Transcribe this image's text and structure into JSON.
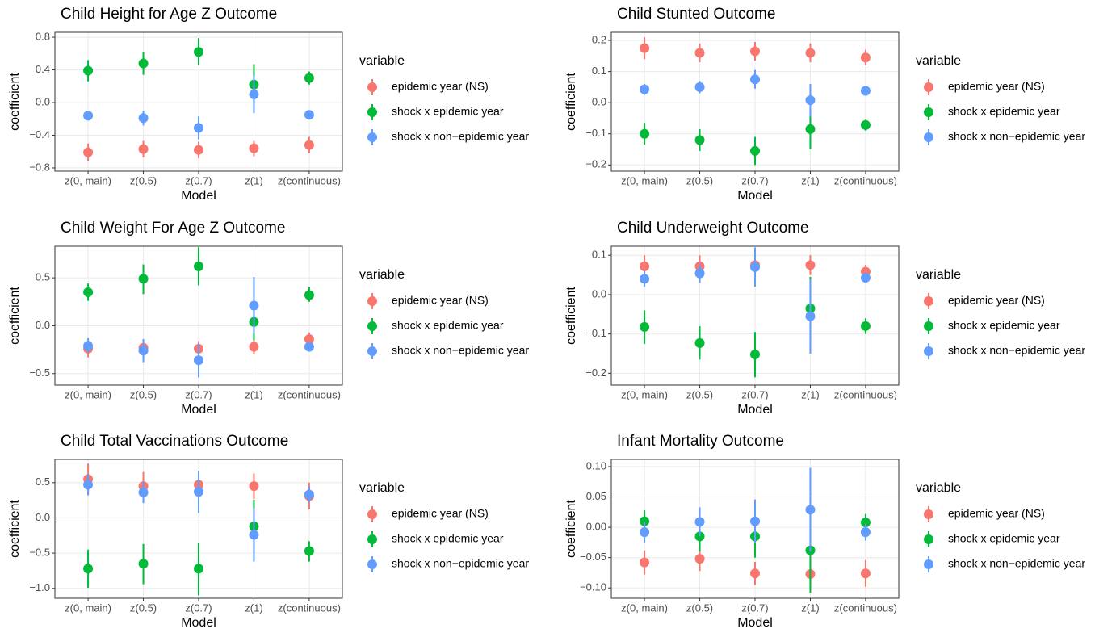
{
  "chart_data": [
    {
      "type": "pointrange",
      "title": "Child Height for Age Z Outcome",
      "xlabel": "Model",
      "ylabel": "coefficient",
      "legend_title": "variable",
      "categories": [
        "z(0, main)",
        "z(0.5)",
        "z(0.7)",
        "z(1)",
        "z(continuous)"
      ],
      "ylim": [
        -0.84,
        0.86
      ],
      "yticks": [
        {
          "value": -0.8,
          "label": "−0.8"
        },
        {
          "value": -0.4,
          "label": "−0.4"
        },
        {
          "value": 0,
          "label": "0.0"
        },
        0.4,
        0.8
      ],
      "grid": true,
      "series": [
        {
          "name": "epidemic year (NS)",
          "color": "#F8766D",
          "values": [
            -0.61,
            -0.57,
            -0.58,
            -0.56,
            -0.52
          ],
          "lower": [
            -0.72,
            -0.67,
            -0.68,
            -0.66,
            -0.62
          ],
          "upper": [
            -0.5,
            -0.47,
            -0.48,
            -0.47,
            -0.42
          ]
        },
        {
          "name": "shock x epidemic year",
          "color": "#00BA38",
          "values": [
            0.39,
            0.48,
            0.62,
            0.22,
            0.3
          ],
          "lower": [
            0.26,
            0.34,
            0.46,
            -0.02,
            0.22
          ],
          "upper": [
            0.52,
            0.62,
            0.79,
            0.47,
            0.38
          ]
        },
        {
          "name": "shock x non−epidemic year",
          "color": "#619CFF",
          "values": [
            -0.16,
            -0.19,
            -0.31,
            0.1,
            -0.15
          ],
          "lower": [
            -0.22,
            -0.28,
            -0.45,
            -0.13,
            -0.18
          ],
          "upper": [
            -0.1,
            -0.1,
            -0.17,
            0.33,
            -0.11
          ]
        }
      ]
    },
    {
      "type": "pointrange",
      "title": "Child Stunted Outcome",
      "xlabel": "Model",
      "ylabel": "coefficient",
      "legend_title": "variable",
      "categories": [
        "z(0, main)",
        "z(0.5)",
        "z(0.7)",
        "z(1)",
        "z(continuous)"
      ],
      "ylim": [
        -0.22,
        0.226
      ],
      "yticks": [
        {
          "value": -0.2,
          "label": "−0.2"
        },
        {
          "value": -0.1,
          "label": "−0.1"
        },
        {
          "value": 0,
          "label": "0.0"
        },
        0.1,
        0.2
      ],
      "grid": true,
      "series": [
        {
          "name": "epidemic year (NS)",
          "color": "#F8766D",
          "values": [
            0.175,
            0.16,
            0.165,
            0.16,
            0.145
          ],
          "lower": [
            0.14,
            0.13,
            0.135,
            0.13,
            0.12
          ],
          "upper": [
            0.21,
            0.19,
            0.195,
            0.19,
            0.17
          ]
        },
        {
          "name": "shock x epidemic year",
          "color": "#00BA38",
          "values": [
            -0.1,
            -0.12,
            -0.155,
            -0.085,
            -0.072
          ],
          "lower": [
            -0.135,
            -0.155,
            -0.2,
            -0.15,
            -0.09
          ],
          "upper": [
            -0.065,
            -0.085,
            -0.11,
            -0.02,
            -0.055
          ]
        },
        {
          "name": "shock x non−epidemic year",
          "color": "#619CFF",
          "values": [
            0.043,
            0.05,
            0.075,
            0.008,
            0.038
          ],
          "lower": [
            0.025,
            0.03,
            0.045,
            -0.045,
            0.028
          ],
          "upper": [
            0.06,
            0.07,
            0.105,
            0.06,
            0.048
          ]
        }
      ]
    },
    {
      "type": "pointrange",
      "title": "Child Weight For Age Z Outcome",
      "xlabel": "Model",
      "ylabel": "coefficient",
      "legend_title": "variable",
      "categories": [
        "z(0, main)",
        "z(0.5)",
        "z(0.7)",
        "z(1)",
        "z(continuous)"
      ],
      "ylim": [
        -0.62,
        0.83
      ],
      "yticks": [
        {
          "value": -0.5,
          "label": "−0.5"
        },
        {
          "value": 0,
          "label": "0.0"
        },
        0.5
      ],
      "grid": true,
      "series": [
        {
          "name": "epidemic year (NS)",
          "color": "#F8766D",
          "values": [
            -0.24,
            -0.23,
            -0.24,
            -0.22,
            -0.14
          ],
          "lower": [
            -0.33,
            -0.32,
            -0.32,
            -0.3,
            -0.21
          ],
          "upper": [
            -0.15,
            -0.14,
            -0.16,
            -0.14,
            -0.07
          ]
        },
        {
          "name": "shock x epidemic year",
          "color": "#00BA38",
          "values": [
            0.35,
            0.49,
            0.62,
            0.04,
            0.32
          ],
          "lower": [
            0.26,
            0.33,
            0.42,
            -0.15,
            0.25
          ],
          "upper": [
            0.44,
            0.64,
            0.82,
            0.23,
            0.4
          ]
        },
        {
          "name": "shock x non−epidemic year",
          "color": "#619CFF",
          "values": [
            -0.21,
            -0.26,
            -0.36,
            0.21,
            -0.22
          ],
          "lower": [
            -0.28,
            -0.38,
            -0.54,
            -0.08,
            -0.27
          ],
          "upper": [
            -0.13,
            -0.14,
            -0.18,
            0.51,
            -0.17
          ]
        }
      ]
    },
    {
      "type": "pointrange",
      "title": "Child Underweight Outcome",
      "xlabel": "Model",
      "ylabel": "coefficient",
      "legend_title": "variable",
      "categories": [
        "z(0, main)",
        "z(0.5)",
        "z(0.7)",
        "z(1)",
        "z(continuous)"
      ],
      "ylim": [
        -0.23,
        0.123
      ],
      "yticks": [
        {
          "value": -0.2,
          "label": "−0.2"
        },
        {
          "value": -0.1,
          "label": "−0.1"
        },
        {
          "value": 0,
          "label": "0.0"
        },
        0.1
      ],
      "grid": true,
      "series": [
        {
          "name": "epidemic year (NS)",
          "color": "#F8766D",
          "values": [
            0.072,
            0.072,
            0.075,
            0.075,
            0.058
          ],
          "lower": [
            0.045,
            0.045,
            0.05,
            0.05,
            0.04
          ],
          "upper": [
            0.1,
            0.1,
            0.1,
            0.1,
            0.076
          ]
        },
        {
          "name": "shock x epidemic year",
          "color": "#00BA38",
          "values": [
            -0.082,
            -0.123,
            -0.152,
            -0.035,
            -0.08
          ],
          "lower": [
            -0.125,
            -0.165,
            -0.21,
            -0.115,
            -0.1
          ],
          "upper": [
            -0.04,
            -0.08,
            -0.095,
            0.045,
            -0.06
          ]
        },
        {
          "name": "shock x non−epidemic year",
          "color": "#619CFF",
          "values": [
            0.04,
            0.054,
            0.07,
            -0.055,
            0.043
          ],
          "lower": [
            0.02,
            0.03,
            0.02,
            -0.15,
            0.03
          ],
          "upper": [
            0.06,
            0.078,
            0.12,
            0.04,
            0.056
          ]
        }
      ]
    },
    {
      "type": "pointrange",
      "title": "Child Total Vaccinations Outcome",
      "xlabel": "Model",
      "ylabel": "coefficient",
      "legend_title": "variable",
      "categories": [
        "z(0, main)",
        "z(0.5)",
        "z(0.7)",
        "z(1)",
        "z(continuous)"
      ],
      "ylim": [
        -1.14,
        0.83
      ],
      "yticks": [
        {
          "value": -1,
          "label": "−1.0"
        },
        {
          "value": -0.5,
          "label": "−0.5"
        },
        {
          "value": 0,
          "label": "0.0"
        },
        0.5
      ],
      "grid": true,
      "series": [
        {
          "name": "epidemic year (NS)",
          "color": "#F8766D",
          "values": [
            0.55,
            0.45,
            0.47,
            0.45,
            0.31
          ],
          "lower": [
            0.33,
            0.25,
            0.27,
            0.27,
            0.12
          ],
          "upper": [
            0.77,
            0.65,
            0.67,
            0.63,
            0.5
          ]
        },
        {
          "name": "shock x epidemic year",
          "color": "#00BA38",
          "values": [
            -0.72,
            -0.65,
            -0.72,
            -0.12,
            -0.47
          ],
          "lower": [
            -0.99,
            -0.94,
            -1.1,
            -0.5,
            -0.62
          ],
          "upper": [
            -0.45,
            -0.37,
            -0.35,
            0.26,
            -0.33
          ]
        },
        {
          "name": "shock x non−epidemic year",
          "color": "#619CFF",
          "values": [
            0.47,
            0.36,
            0.37,
            -0.24,
            0.33
          ],
          "lower": [
            0.32,
            0.21,
            0.07,
            -0.62,
            0.22
          ],
          "upper": [
            0.62,
            0.51,
            0.67,
            0.14,
            0.44
          ]
        }
      ]
    },
    {
      "type": "pointrange",
      "title": "Infant Mortality Outcome",
      "xlabel": "Model",
      "ylabel": "coefficient",
      "legend_title": "variable",
      "categories": [
        "z(0, main)",
        "z(0.5)",
        "z(0.7)",
        "z(1)",
        "z(continuous)"
      ],
      "ylim": [
        -0.117,
        0.112
      ],
      "yticks": [
        {
          "value": -0.1,
          "label": "−0.10"
        },
        {
          "value": -0.05,
          "label": "−0.05"
        },
        {
          "value": 0,
          "label": "0.00"
        },
        0.05,
        {
          "value": 0.1,
          "label": "0.10"
        }
      ],
      "grid": true,
      "series": [
        {
          "name": "epidemic year (NS)",
          "color": "#F8766D",
          "values": [
            -0.058,
            -0.052,
            -0.076,
            -0.077,
            -0.076
          ],
          "lower": [
            -0.078,
            -0.072,
            -0.095,
            -0.098,
            -0.098
          ],
          "upper": [
            -0.038,
            -0.032,
            -0.057,
            -0.056,
            -0.054
          ]
        },
        {
          "name": "shock x epidemic year",
          "color": "#00BA38",
          "values": [
            0.01,
            -0.015,
            -0.015,
            -0.038,
            0.008
          ],
          "lower": [
            -0.008,
            -0.04,
            -0.05,
            -0.108,
            -0.006
          ],
          "upper": [
            0.028,
            0.01,
            0.02,
            0.032,
            0.022
          ]
        },
        {
          "name": "shock x non−epidemic year",
          "color": "#619CFF",
          "values": [
            -0.008,
            0.009,
            0.01,
            0.029,
            -0.008
          ],
          "lower": [
            -0.025,
            -0.015,
            -0.026,
            -0.04,
            -0.022
          ],
          "upper": [
            0.009,
            0.033,
            0.046,
            0.098,
            0.006
          ]
        }
      ]
    }
  ]
}
